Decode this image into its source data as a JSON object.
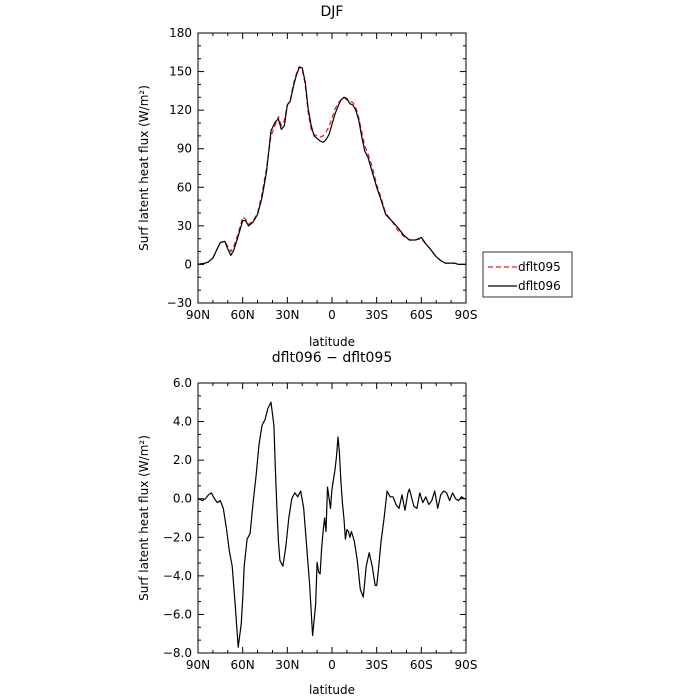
{
  "chart_data": [
    {
      "type": "line",
      "title": "DJF",
      "xlabel": "latitude",
      "ylabel": "Surf latent heat flux (W/m²)",
      "xlim": [
        90,
        -90
      ],
      "ylim": [
        -30,
        180
      ],
      "xticks": [
        90,
        60,
        30,
        0,
        -30,
        -60,
        -90
      ],
      "xticklabels": [
        "90N",
        "60N",
        "30N",
        "0",
        "30S",
        "60S",
        "90S"
      ],
      "yticks": [
        -30,
        0,
        30,
        60,
        90,
        120,
        150,
        180
      ],
      "yticklabels": [
        "−30",
        "0",
        "30",
        "60",
        "90",
        "120",
        "150",
        "180"
      ],
      "legend_position": "right",
      "series": [
        {
          "name": "dflt095",
          "color": "#e41a1c",
          "style": "dashed",
          "x": [
            90,
            85,
            83,
            80,
            78,
            75,
            72,
            70,
            68,
            66,
            63,
            60,
            58,
            56,
            53,
            50,
            47,
            44,
            41,
            38,
            36,
            34,
            32,
            30,
            28,
            26,
            24,
            22,
            20,
            18,
            16,
            14,
            12,
            10,
            8,
            6,
            4,
            2,
            0,
            -2,
            -4,
            -6,
            -8,
            -10,
            -12,
            -14,
            -16,
            -18,
            -20,
            -22,
            -24,
            -27,
            -30,
            -33,
            -36,
            -40,
            -44,
            -48,
            -52,
            -56,
            -60,
            -63,
            -66,
            -68,
            -70,
            -73,
            -76,
            -79,
            -82,
            -85,
            -88,
            -90
          ],
          "y": [
            0,
            1,
            2,
            5,
            10,
            17,
            18,
            14,
            10,
            14,
            24,
            37,
            35,
            31,
            34,
            40,
            55,
            75,
            100,
            109,
            115,
            108,
            112,
            124,
            128,
            140,
            148,
            154,
            152,
            140,
            118,
            105,
            101,
            100,
            99,
            100,
            103,
            107,
            114,
            121,
            125,
            128,
            130,
            128,
            127,
            126,
            122,
            114,
            103,
            92,
            87,
            76,
            62,
            52,
            40,
            34,
            27,
            22,
            19,
            19,
            20,
            16,
            12,
            9,
            6,
            3,
            1,
            1,
            1,
            0,
            0,
            0
          ]
        },
        {
          "name": "dflt096",
          "color": "#000000",
          "style": "solid",
          "x": [
            90,
            85,
            83,
            80,
            78,
            75,
            72,
            70,
            68,
            66,
            63,
            60,
            58,
            56,
            53,
            50,
            47,
            44,
            41,
            38,
            36,
            34,
            32,
            30,
            28,
            26,
            24,
            22,
            20,
            18,
            16,
            14,
            12,
            10,
            8,
            6,
            4,
            2,
            0,
            -2,
            -4,
            -6,
            -8,
            -10,
            -12,
            -14,
            -16,
            -18,
            -20,
            -22,
            -24,
            -27,
            -30,
            -33,
            -36,
            -40,
            -44,
            -48,
            -52,
            -56,
            -60,
            -63,
            -66,
            -68,
            -70,
            -73,
            -76,
            -79,
            -82,
            -85,
            -88,
            -90
          ],
          "y": [
            0,
            1,
            2,
            5,
            10,
            17,
            18,
            12,
            7,
            11,
            22,
            34,
            34,
            30,
            33,
            39,
            52,
            72,
            104,
            111,
            113,
            105,
            108,
            124,
            127,
            138,
            147,
            153,
            153,
            142,
            121,
            108,
            100,
            98,
            96,
            95,
            97,
            101,
            109,
            117,
            123,
            128,
            130,
            129,
            125,
            124,
            120,
            112,
            99,
            88,
            84,
            72,
            60,
            50,
            39,
            34,
            29,
            23,
            19,
            19,
            21,
            16,
            12,
            9,
            6,
            3,
            1,
            1,
            1,
            0,
            0,
            0
          ]
        }
      ]
    },
    {
      "type": "line",
      "title": "dflt096 − dflt095",
      "xlabel": "latitude",
      "ylabel": "Surf latent heat flux (W/m²)",
      "xlim": [
        90,
        -90
      ],
      "ylim": [
        -8,
        6
      ],
      "xticks": [
        90,
        60,
        30,
        0,
        -30,
        -60,
        -90
      ],
      "xticklabels": [
        "90N",
        "60N",
        "30N",
        "0",
        "30S",
        "60S",
        "90S"
      ],
      "yticks": [
        -8,
        -6,
        -4,
        -2,
        0,
        2,
        4,
        6
      ],
      "yticklabels": [
        "−8.0",
        "−6.0",
        "−4.0",
        "−2.0",
        "0.0",
        "2.0",
        "4.0",
        "6.0"
      ],
      "series": [
        {
          "name": "",
          "color": "#000000",
          "style": "solid",
          "x": [
            90,
            87,
            85,
            83,
            81,
            79,
            77,
            75,
            73,
            71,
            69,
            67,
            65,
            63,
            61,
            60,
            59,
            57,
            55,
            53,
            51,
            49,
            47,
            45,
            43,
            41,
            39,
            38,
            37,
            36,
            35,
            33,
            31,
            29,
            27,
            25,
            23,
            21,
            19,
            17,
            15,
            13,
            11,
            10,
            9,
            8,
            7,
            6,
            5,
            4,
            3,
            1,
            0,
            -1,
            -2,
            -3,
            -4,
            -5,
            -6,
            -7,
            -8,
            -9,
            -10,
            -11,
            -12,
            -13,
            -15,
            -17,
            -19,
            -21,
            -23,
            -25,
            -27,
            -29,
            -30,
            -31,
            -33,
            -35,
            -37,
            -39,
            -41,
            -43,
            -45,
            -47,
            -49,
            -51,
            -52,
            -53,
            -55,
            -57,
            -59,
            -61,
            -63,
            -65,
            -67,
            -69,
            -71,
            -73,
            -75,
            -77,
            -79,
            -81,
            -83,
            -85,
            -87,
            -89,
            -90
          ],
          "y": [
            0,
            -0.1,
            0,
            0.2,
            0.3,
            0,
            -0.2,
            -0.1,
            -0.5,
            -1.5,
            -2.7,
            -3.5,
            -5.5,
            -7.7,
            -6.5,
            -5.2,
            -3.5,
            -2.1,
            -1.8,
            -0.2,
            1.2,
            2.8,
            3.8,
            4.1,
            4.7,
            5.0,
            3.8,
            1.5,
            -0.5,
            -2.2,
            -3.2,
            -3.5,
            -2.5,
            -1.0,
            0.0,
            0.3,
            0.1,
            0.4,
            -0.5,
            -2.5,
            -4.5,
            -7.1,
            -5.5,
            -3.3,
            -3.8,
            -3.9,
            -2.6,
            -1.7,
            -1.0,
            -1.7,
            0.6,
            -0.5,
            0.5,
            1.0,
            1.5,
            2.2,
            3.2,
            2.4,
            0.9,
            -0.2,
            -1.0,
            -2.1,
            -1.6,
            -1.7,
            -2.0,
            -1.7,
            -2.2,
            -3.2,
            -4.7,
            -5.1,
            -3.5,
            -2.8,
            -3.5,
            -4.5,
            -4.5,
            -3.8,
            -2.2,
            -1.0,
            0.4,
            0.1,
            0.1,
            -0.3,
            -0.5,
            0.2,
            -0.6,
            0.3,
            0.5,
            0.2,
            -0.4,
            -0.5,
            0.3,
            -0.2,
            0.1,
            -0.3,
            -0.1,
            0.4,
            -0.5,
            0.2,
            0.4,
            0.3,
            -0.1,
            0.3,
            0,
            -0.1,
            0.1,
            0,
            0
          ]
        }
      ]
    }
  ]
}
